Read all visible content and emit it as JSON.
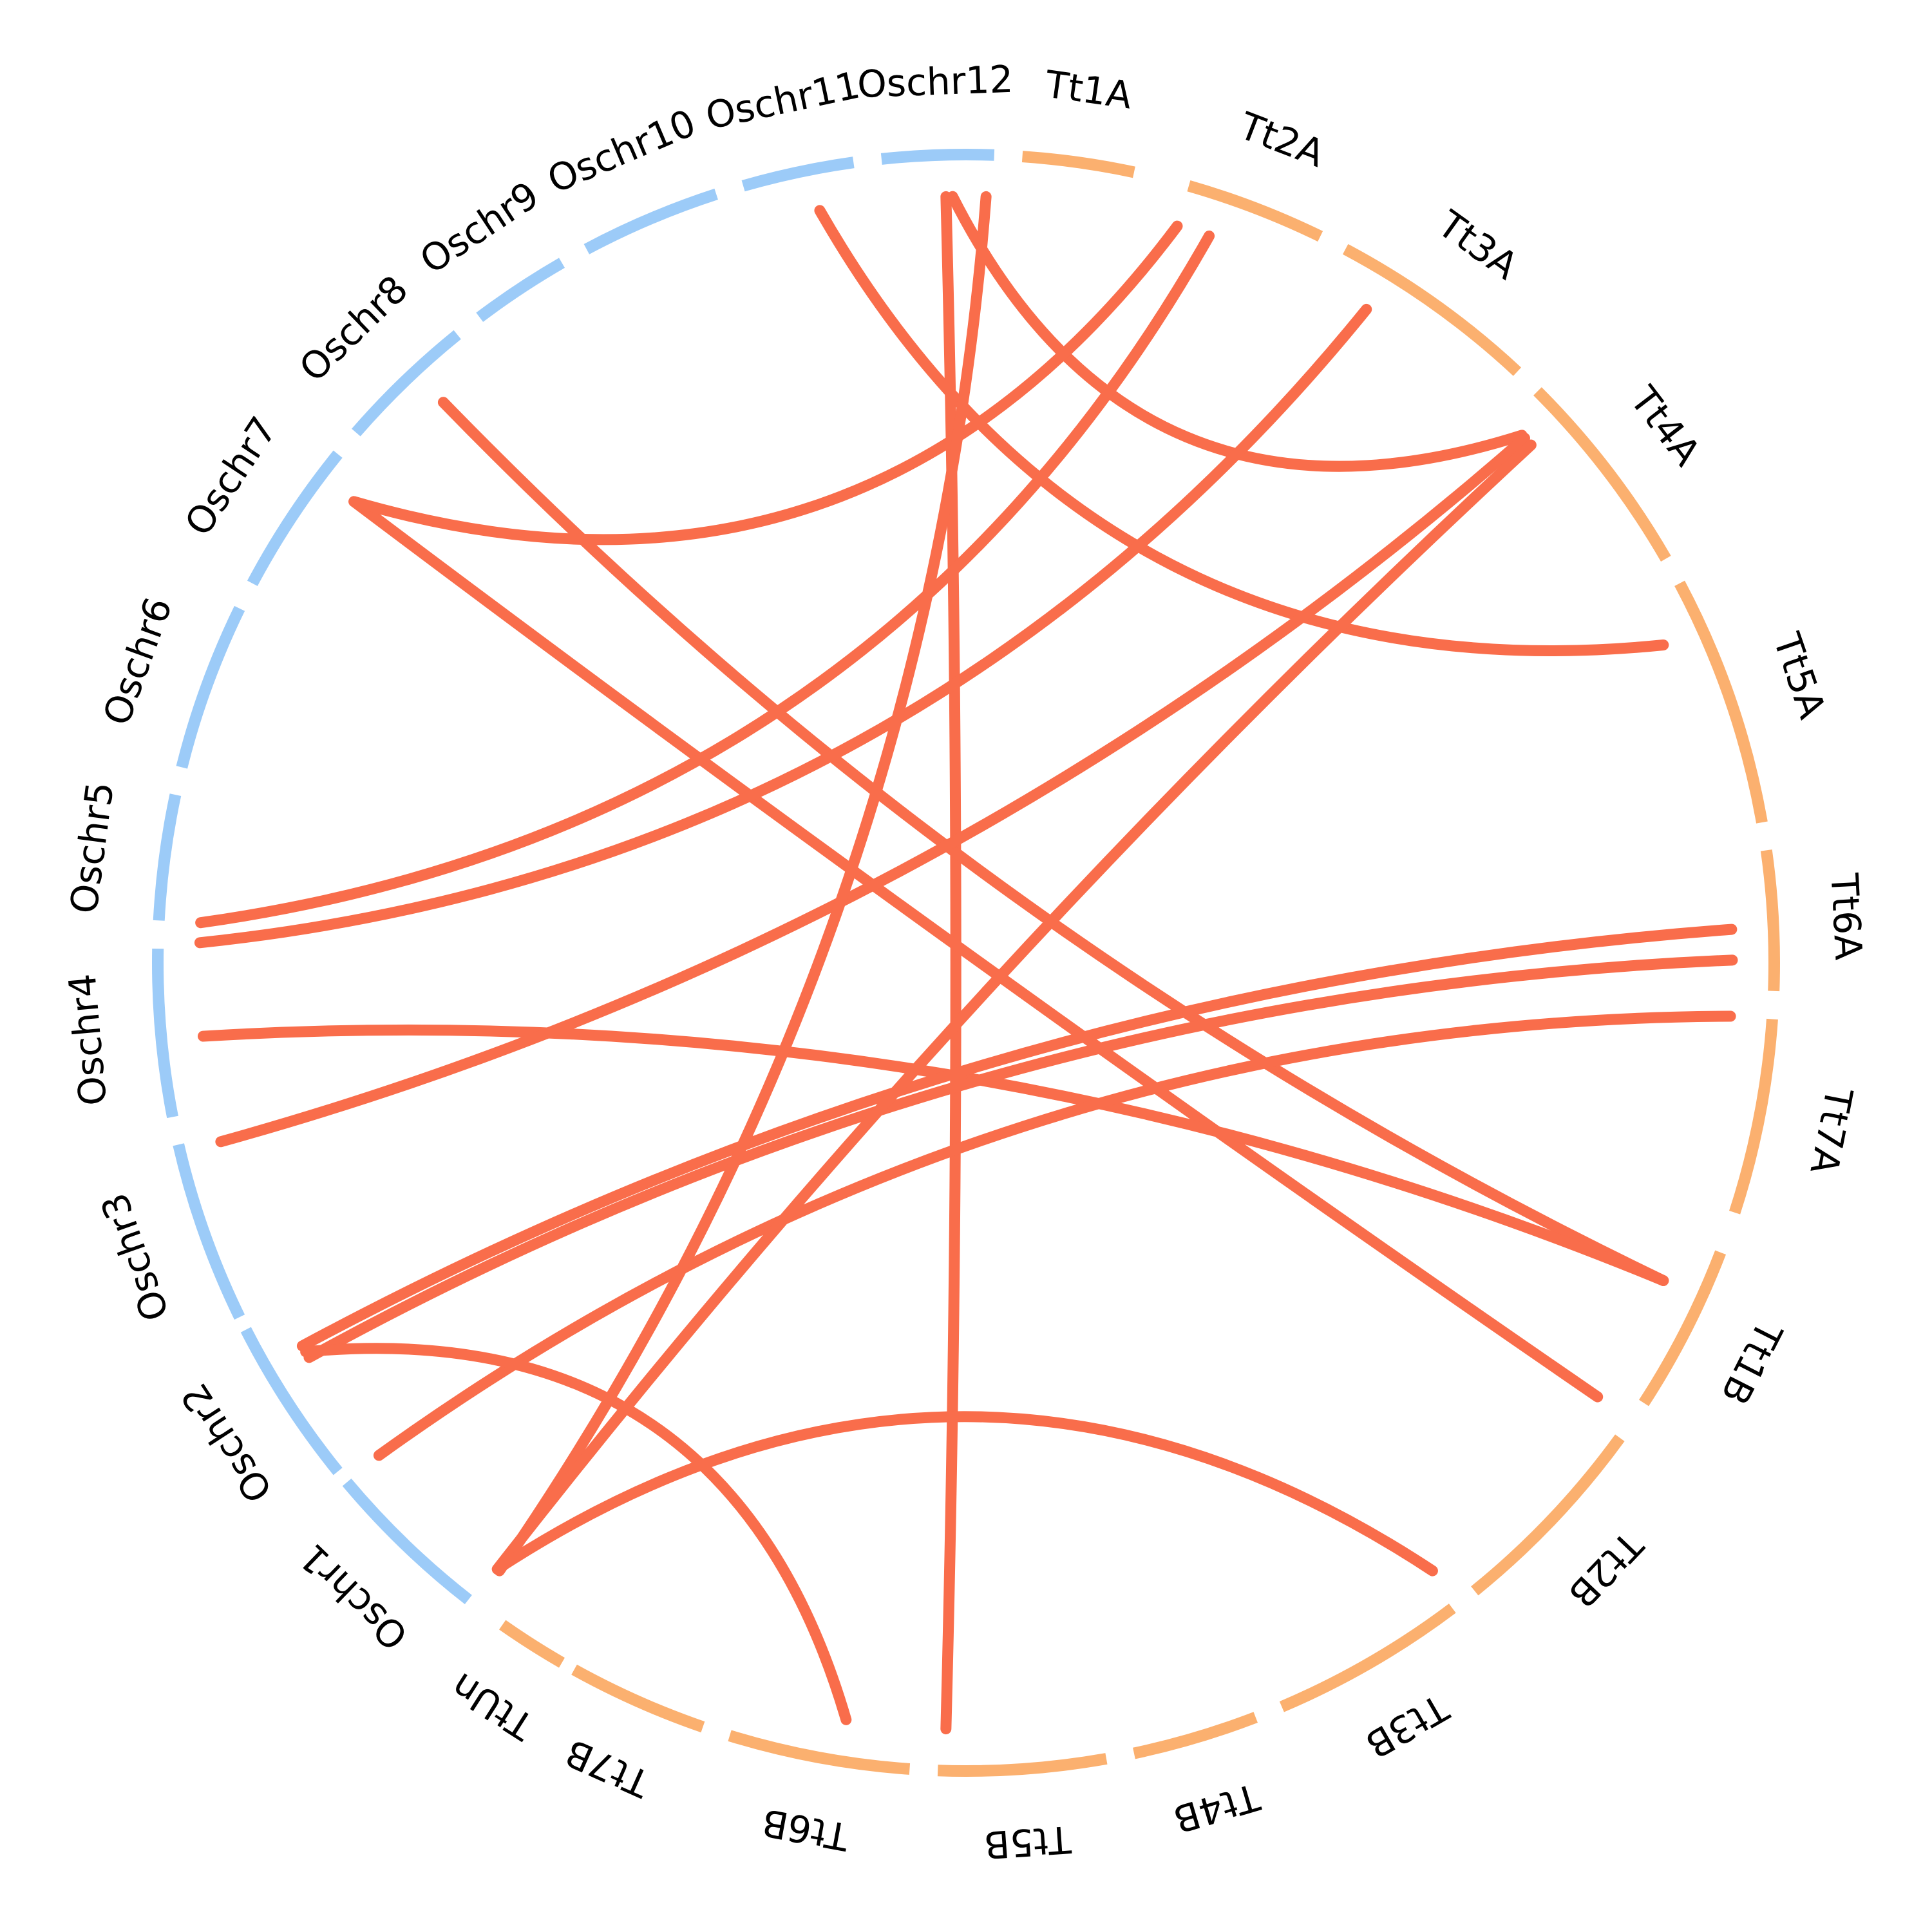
{
  "colors": {
    "oryza": "#9ccbf8",
    "triticum": "#fbb06f",
    "link": "#f96d4b",
    "background": "#ffffff",
    "text": "#000000"
  },
  "chromosomes": [
    {
      "id": "Oschr1",
      "label": "Oschr1",
      "group": "oryza"
    },
    {
      "id": "Oschr2",
      "label": "Oschr2",
      "group": "oryza"
    },
    {
      "id": "Oschr3",
      "label": "Oschr3",
      "group": "oryza"
    },
    {
      "id": "Oschr4",
      "label": "Oschr4",
      "group": "oryza"
    },
    {
      "id": "Oschr5",
      "label": "Oschr5",
      "group": "oryza"
    },
    {
      "id": "Oschr6",
      "label": "Oschr6",
      "group": "oryza"
    },
    {
      "id": "Oschr7",
      "label": "Oschr7",
      "group": "oryza"
    },
    {
      "id": "Oschr8",
      "label": "Oschr8",
      "group": "oryza"
    },
    {
      "id": "Oschr9",
      "label": "Oschr9",
      "group": "oryza"
    },
    {
      "id": "Oschr10",
      "label": "Oschr10",
      "group": "oryza"
    },
    {
      "id": "Oschr11",
      "label": "Oschr11",
      "group": "oryza"
    },
    {
      "id": "Oschr12",
      "label": "Oschr12",
      "group": "oryza"
    },
    {
      "id": "Tt1A",
      "label": "Tt1A",
      "group": "triticum"
    },
    {
      "id": "Tt2A",
      "label": "Tt2A",
      "group": "triticum"
    },
    {
      "id": "Tt3A",
      "label": "Tt3A",
      "group": "triticum"
    },
    {
      "id": "Tt4A",
      "label": "Tt4A",
      "group": "triticum"
    },
    {
      "id": "Tt5A",
      "label": "Tt5A",
      "group": "triticum"
    },
    {
      "id": "Tt6A",
      "label": "Tt6A",
      "group": "triticum"
    },
    {
      "id": "Tt7A",
      "label": "Tt7A",
      "group": "triticum"
    },
    {
      "id": "Tt1B",
      "label": "Tt1B",
      "group": "triticum"
    },
    {
      "id": "Tt2B",
      "label": "Tt2B",
      "group": "triticum"
    },
    {
      "id": "Tt3B",
      "label": "Tt3B",
      "group": "triticum"
    },
    {
      "id": "Tt4B",
      "label": "Tt4B",
      "group": "triticum"
    },
    {
      "id": "Tt5B",
      "label": "Tt5B",
      "group": "triticum"
    },
    {
      "id": "Tt6B",
      "label": "Tt6B",
      "group": "triticum"
    },
    {
      "id": "Tt7B",
      "label": "Tt7B",
      "group": "triticum"
    },
    {
      "id": "TtUn",
      "label": "TtUn",
      "group": "triticum"
    }
  ],
  "links": [
    {
      "from": "Oschr12",
      "to": "Tt5B"
    },
    {
      "from": "Oschr12",
      "to": "Tt4A"
    },
    {
      "from": "Oschr11",
      "to": "Tt5A"
    },
    {
      "from": "Oschr8",
      "to": "Tt1B"
    },
    {
      "from": "Oschr7",
      "to": "Tt2B"
    },
    {
      "from": "Oschr7",
      "to": "Tt2A"
    },
    {
      "from": "Oschr4",
      "to": "Tt3A"
    },
    {
      "from": "Oschr4",
      "to": "Tt2A"
    },
    {
      "from": "Oschr4",
      "to": "Tt1B"
    },
    {
      "from": "Oschr3",
      "to": "Tt4A"
    },
    {
      "from": "Oschr2",
      "to": "Tt6A"
    },
    {
      "from": "Oschr2",
      "to": "Tt6A"
    },
    {
      "from": "Oschr2",
      "to": "Tt6A"
    },
    {
      "from": "Oschr2",
      "to": "Tt6B"
    },
    {
      "from": "Oschr1",
      "to": "Tt1A"
    },
    {
      "from": "Oschr1",
      "to": "Tt3A"
    },
    {
      "from": "Oschr1",
      "to": "Tt3B"
    }
  ]
}
